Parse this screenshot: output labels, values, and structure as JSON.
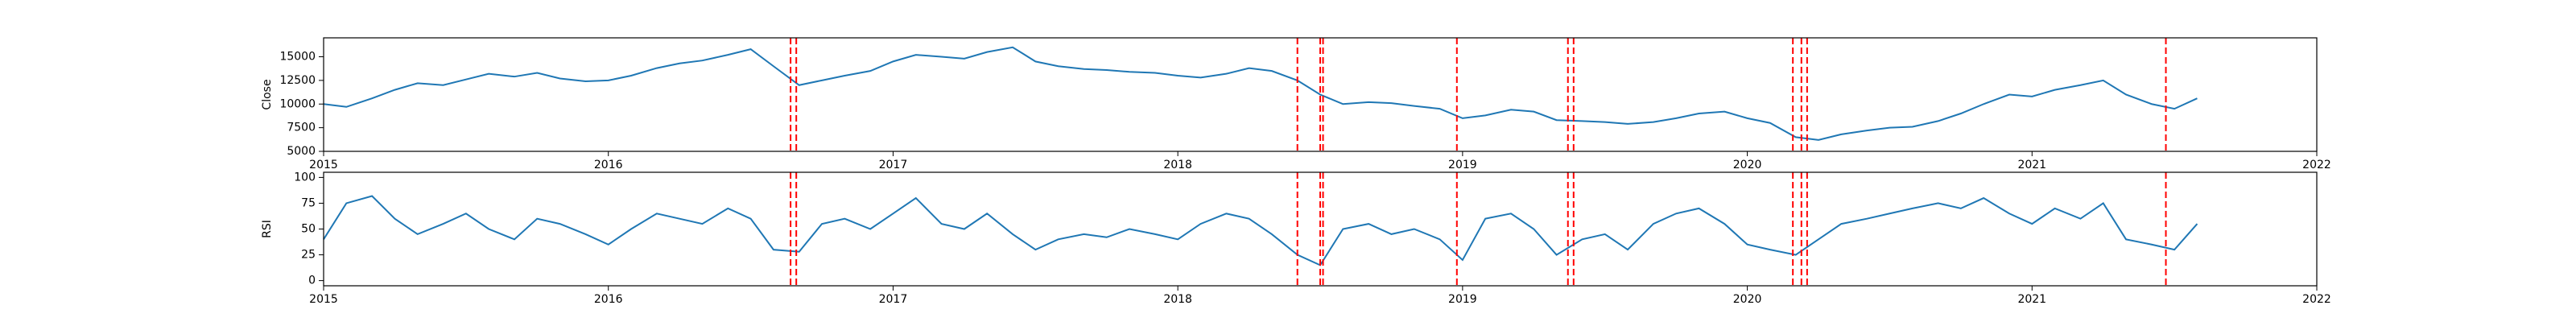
{
  "chart_data": [
    {
      "type": "line",
      "y_label": "Close",
      "color": "#1f77b4",
      "x": [
        2015.0,
        2015.08,
        2015.17,
        2015.25,
        2015.33,
        2015.42,
        2015.5,
        2015.58,
        2015.67,
        2015.75,
        2015.83,
        2015.92,
        2016.0,
        2016.08,
        2016.17,
        2016.25,
        2016.33,
        2016.42,
        2016.5,
        2016.58,
        2016.67,
        2016.75,
        2016.83,
        2016.92,
        2017.0,
        2017.08,
        2017.17,
        2017.25,
        2017.33,
        2017.42,
        2017.5,
        2017.58,
        2017.67,
        2017.75,
        2017.83,
        2017.92,
        2018.0,
        2018.08,
        2018.17,
        2018.25,
        2018.33,
        2018.42,
        2018.5,
        2018.58,
        2018.67,
        2018.75,
        2018.83,
        2018.92,
        2019.0,
        2019.08,
        2019.17,
        2019.25,
        2019.33,
        2019.42,
        2019.5,
        2019.58,
        2019.67,
        2019.75,
        2019.83,
        2019.92,
        2020.0,
        2020.08,
        2020.17,
        2020.25,
        2020.33,
        2020.42,
        2020.5,
        2020.58,
        2020.67,
        2020.75,
        2020.83,
        2020.92,
        2021.0,
        2021.08,
        2021.17,
        2021.25,
        2021.33,
        2021.42,
        2021.5,
        2021.58
      ],
      "values": [
        10000,
        9700,
        10600,
        11500,
        12200,
        12000,
        12600,
        13200,
        12900,
        13300,
        12700,
        12400,
        12500,
        13000,
        13800,
        14300,
        14600,
        15200,
        15800,
        14000,
        12000,
        12500,
        13000,
        13500,
        14500,
        15200,
        15000,
        14800,
        15500,
        16000,
        14500,
        14000,
        13700,
        13600,
        13400,
        13300,
        13000,
        12800,
        13200,
        13800,
        13500,
        12500,
        11000,
        10000,
        10200,
        10100,
        9800,
        9500,
        8500,
        8800,
        9400,
        9200,
        8300,
        8200,
        8100,
        7900,
        8100,
        8500,
        9000,
        9200,
        8500,
        8000,
        6500,
        6200,
        6800,
        7200,
        7500,
        7600,
        8200,
        9000,
        10000,
        11000,
        10800,
        11500,
        12000,
        12500,
        11000,
        10000,
        9500,
        10600
      ],
      "xlim": [
        2015,
        2022
      ],
      "xticks": [
        2015,
        2016,
        2017,
        2018,
        2019,
        2020,
        2021,
        2022
      ],
      "ylim": [
        5000,
        17000
      ],
      "yticks": [
        5000,
        7500,
        10000,
        12500,
        15000
      ],
      "vlines": [
        2016.64,
        2016.66,
        2018.42,
        2018.5,
        2018.51,
        2018.98,
        2019.37,
        2019.39,
        2020.16,
        2020.19,
        2020.21,
        2021.47
      ],
      "vline_color": "#ff0000"
    },
    {
      "type": "line",
      "y_label": "RSI",
      "color": "#1f77b4",
      "x": [
        2015.0,
        2015.08,
        2015.17,
        2015.25,
        2015.33,
        2015.42,
        2015.5,
        2015.58,
        2015.67,
        2015.75,
        2015.83,
        2015.92,
        2016.0,
        2016.08,
        2016.17,
        2016.25,
        2016.33,
        2016.42,
        2016.5,
        2016.58,
        2016.67,
        2016.75,
        2016.83,
        2016.92,
        2017.0,
        2017.08,
        2017.17,
        2017.25,
        2017.33,
        2017.42,
        2017.5,
        2017.58,
        2017.67,
        2017.75,
        2017.83,
        2017.92,
        2018.0,
        2018.08,
        2018.17,
        2018.25,
        2018.33,
        2018.42,
        2018.5,
        2018.58,
        2018.67,
        2018.75,
        2018.83,
        2018.92,
        2019.0,
        2019.08,
        2019.17,
        2019.25,
        2019.33,
        2019.42,
        2019.5,
        2019.58,
        2019.67,
        2019.75,
        2019.83,
        2019.92,
        2020.0,
        2020.08,
        2020.17,
        2020.25,
        2020.33,
        2020.42,
        2020.5,
        2020.58,
        2020.67,
        2020.75,
        2020.83,
        2020.92,
        2021.0,
        2021.08,
        2021.17,
        2021.25,
        2021.33,
        2021.42,
        2021.5,
        2021.58
      ],
      "values": [
        40,
        75,
        82,
        60,
        45,
        55,
        65,
        50,
        40,
        60,
        55,
        45,
        35,
        50,
        65,
        60,
        55,
        70,
        60,
        30,
        28,
        55,
        60,
        50,
        65,
        80,
        55,
        50,
        65,
        45,
        30,
        40,
        45,
        42,
        50,
        45,
        40,
        55,
        65,
        60,
        45,
        25,
        15,
        50,
        55,
        45,
        50,
        40,
        20,
        60,
        65,
        50,
        25,
        40,
        45,
        30,
        55,
        65,
        70,
        55,
        35,
        30,
        25,
        40,
        55,
        60,
        65,
        70,
        75,
        70,
        80,
        65,
        55,
        70,
        60,
        75,
        40,
        35,
        30,
        55
      ],
      "xlim": [
        2015,
        2022
      ],
      "xticks": [
        2015,
        2016,
        2017,
        2018,
        2019,
        2020,
        2021,
        2022
      ],
      "ylim": [
        -5,
        105
      ],
      "yticks": [
        0,
        25,
        50,
        75,
        100
      ],
      "vlines": [
        2016.64,
        2016.66,
        2018.42,
        2018.5,
        2018.51,
        2018.98,
        2019.37,
        2019.39,
        2020.16,
        2020.19,
        2020.21,
        2021.47
      ],
      "vline_color": "#ff0000"
    }
  ]
}
